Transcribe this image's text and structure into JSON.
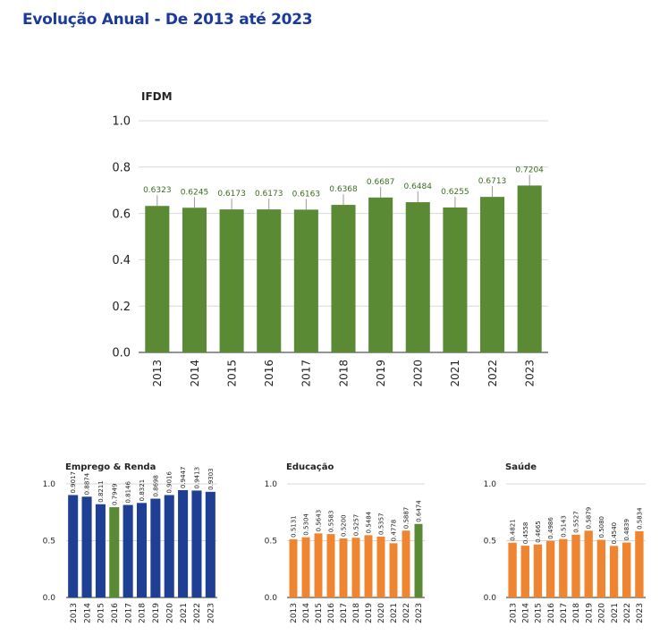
{
  "page": {
    "title": "Evolução Anual - De 2013 até 2023",
    "title_color": "#1a3a9c"
  },
  "colors": {
    "green": "#5a8a34",
    "blue": "#1f3f95",
    "orange": "#ef8530",
    "grid": "#d8d8d8",
    "label_green": "#3d6b22",
    "text": "#222222"
  },
  "chart_data": [
    {
      "id": "ifdm",
      "type": "bar",
      "title": "IFDM",
      "categories": [
        "2013",
        "2014",
        "2015",
        "2016",
        "2017",
        "2018",
        "2019",
        "2020",
        "2021",
        "2022",
        "2023"
      ],
      "values": [
        0.6323,
        0.6245,
        0.6173,
        0.6173,
        0.6163,
        0.6368,
        0.6687,
        0.6484,
        0.6255,
        0.6713,
        0.7204
      ],
      "labels": [
        "0.6323",
        "0.6245",
        "0.6173",
        "0.6173",
        "0.6163",
        "0.6368",
        "0.6687",
        "0.6484",
        "0.6255",
        "0.6713",
        "0.7204"
      ],
      "ylim": [
        0,
        1
      ],
      "yticks": [
        "0.0",
        "0.2",
        "0.4",
        "0.6",
        "0.8",
        "1.0"
      ],
      "grid": true,
      "bar_color": "#5a8a34",
      "label_color": "#3d6b22"
    },
    {
      "id": "emprego",
      "type": "bar",
      "title": "Emprego & Renda",
      "categories": [
        "2013",
        "2014",
        "2015",
        "2016",
        "2017",
        "2018",
        "2019",
        "2020",
        "2021",
        "2022",
        "2023"
      ],
      "values": [
        0.9017,
        0.8874,
        0.8211,
        0.7949,
        0.8146,
        0.8321,
        0.8698,
        0.9016,
        0.9447,
        0.9413,
        0.9303
      ],
      "labels": [
        "0.9017",
        "0.8874",
        "0.8211",
        "0.7949",
        "0.8146",
        "0.8321",
        "0.8698",
        "0.9016",
        "0.9447",
        "0.9413",
        "0.9303"
      ],
      "ylim": [
        0,
        1
      ],
      "yticks": [
        "0.0",
        "0.5",
        "1.0"
      ],
      "grid": true,
      "bar_colors": [
        "#1f3f95",
        "#1f3f95",
        "#1f3f95",
        "#5a8a34",
        "#1f3f95",
        "#1f3f95",
        "#1f3f95",
        "#1f3f95",
        "#1f3f95",
        "#1f3f95",
        "#1f3f95"
      ]
    },
    {
      "id": "educacao",
      "type": "bar",
      "title": "Educação",
      "categories": [
        "2013",
        "2014",
        "2015",
        "2016",
        "2017",
        "2018",
        "2019",
        "2020",
        "2021",
        "2022",
        "2023"
      ],
      "values": [
        0.5131,
        0.5304,
        0.5643,
        0.5583,
        0.52,
        0.5257,
        0.5484,
        0.5357,
        0.4778,
        0.5887,
        0.6474
      ],
      "labels": [
        "0.5131",
        "0.5304",
        "0.5643",
        "0.5583",
        "0.5200",
        "0.5257",
        "0.5484",
        "0.5357",
        "0.4778",
        "0.5887",
        "0.6474"
      ],
      "ylim": [
        0,
        1
      ],
      "yticks": [
        "0.0",
        "0.5",
        "1.0"
      ],
      "grid": true,
      "bar_colors": [
        "#ef8530",
        "#ef8530",
        "#ef8530",
        "#ef8530",
        "#ef8530",
        "#ef8530",
        "#ef8530",
        "#ef8530",
        "#ef8530",
        "#ef8530",
        "#5a8a34"
      ]
    },
    {
      "id": "saude",
      "type": "bar",
      "title": "Saúde",
      "categories": [
        "2013",
        "2014",
        "2015",
        "2016",
        "2017",
        "2018",
        "2019",
        "2020",
        "2021",
        "2022",
        "2023"
      ],
      "values": [
        0.4821,
        0.4558,
        0.4665,
        0.4986,
        0.5143,
        0.5527,
        0.5879,
        0.508,
        0.454,
        0.4839,
        0.5834
      ],
      "labels": [
        "0.4821",
        "0.4558",
        "0.4665",
        "0.4986",
        "0.5143",
        "0.5527",
        "0.5879",
        "0.5080",
        "0.4540",
        "0.4839",
        "0.5834"
      ],
      "ylim": [
        0,
        1
      ],
      "yticks": [
        "0.0",
        "0.5",
        "1.0"
      ],
      "grid": true,
      "bar_colors": [
        "#ef8530",
        "#ef8530",
        "#ef8530",
        "#ef8530",
        "#ef8530",
        "#ef8530",
        "#ef8530",
        "#ef8530",
        "#ef8530",
        "#ef8530",
        "#ef8530"
      ]
    }
  ]
}
